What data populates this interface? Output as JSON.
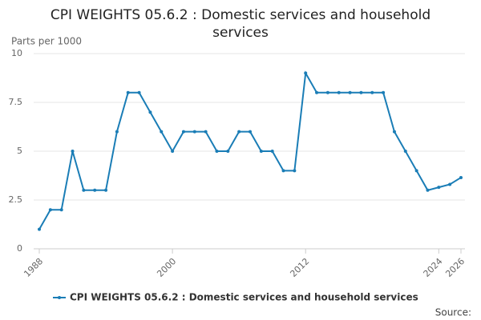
{
  "chart_data": {
    "type": "line",
    "title": "CPI WEIGHTS 05.6.2 : Domestic services and household services",
    "y_label": "Parts per 1000",
    "source": "Source:",
    "x": [
      1988,
      1989,
      1990,
      1991,
      1992,
      1993,
      1994,
      1995,
      1996,
      1997,
      1998,
      1999,
      2000,
      2001,
      2002,
      2003,
      2004,
      2005,
      2006,
      2007,
      2008,
      2009,
      2010,
      2011,
      2012,
      2013,
      2014,
      2015,
      2016,
      2017,
      2018,
      2019,
      2020,
      2021,
      2022,
      2023,
      2024,
      2025,
      2026
    ],
    "series": [
      {
        "name": "CPI WEIGHTS 05.6.2 : Domestic services and household services",
        "color": "#1a7db6",
        "values": [
          1,
          2,
          2,
          5,
          3,
          3,
          3,
          6,
          8,
          8,
          7,
          6,
          5,
          6,
          6,
          6,
          5,
          5,
          6,
          6,
          5,
          5,
          4,
          4,
          9,
          8,
          8,
          8,
          8,
          8,
          8,
          8,
          6,
          5,
          4,
          3,
          3.15,
          3.3,
          3.65
        ]
      }
    ],
    "xlim": [
      1988,
      2026
    ],
    "xticks": [
      1988,
      2000,
      2012,
      2024,
      2026
    ],
    "ylim": [
      0,
      10
    ],
    "yticks": [
      0,
      2.5,
      5,
      7.5,
      10
    ],
    "grid": true
  }
}
